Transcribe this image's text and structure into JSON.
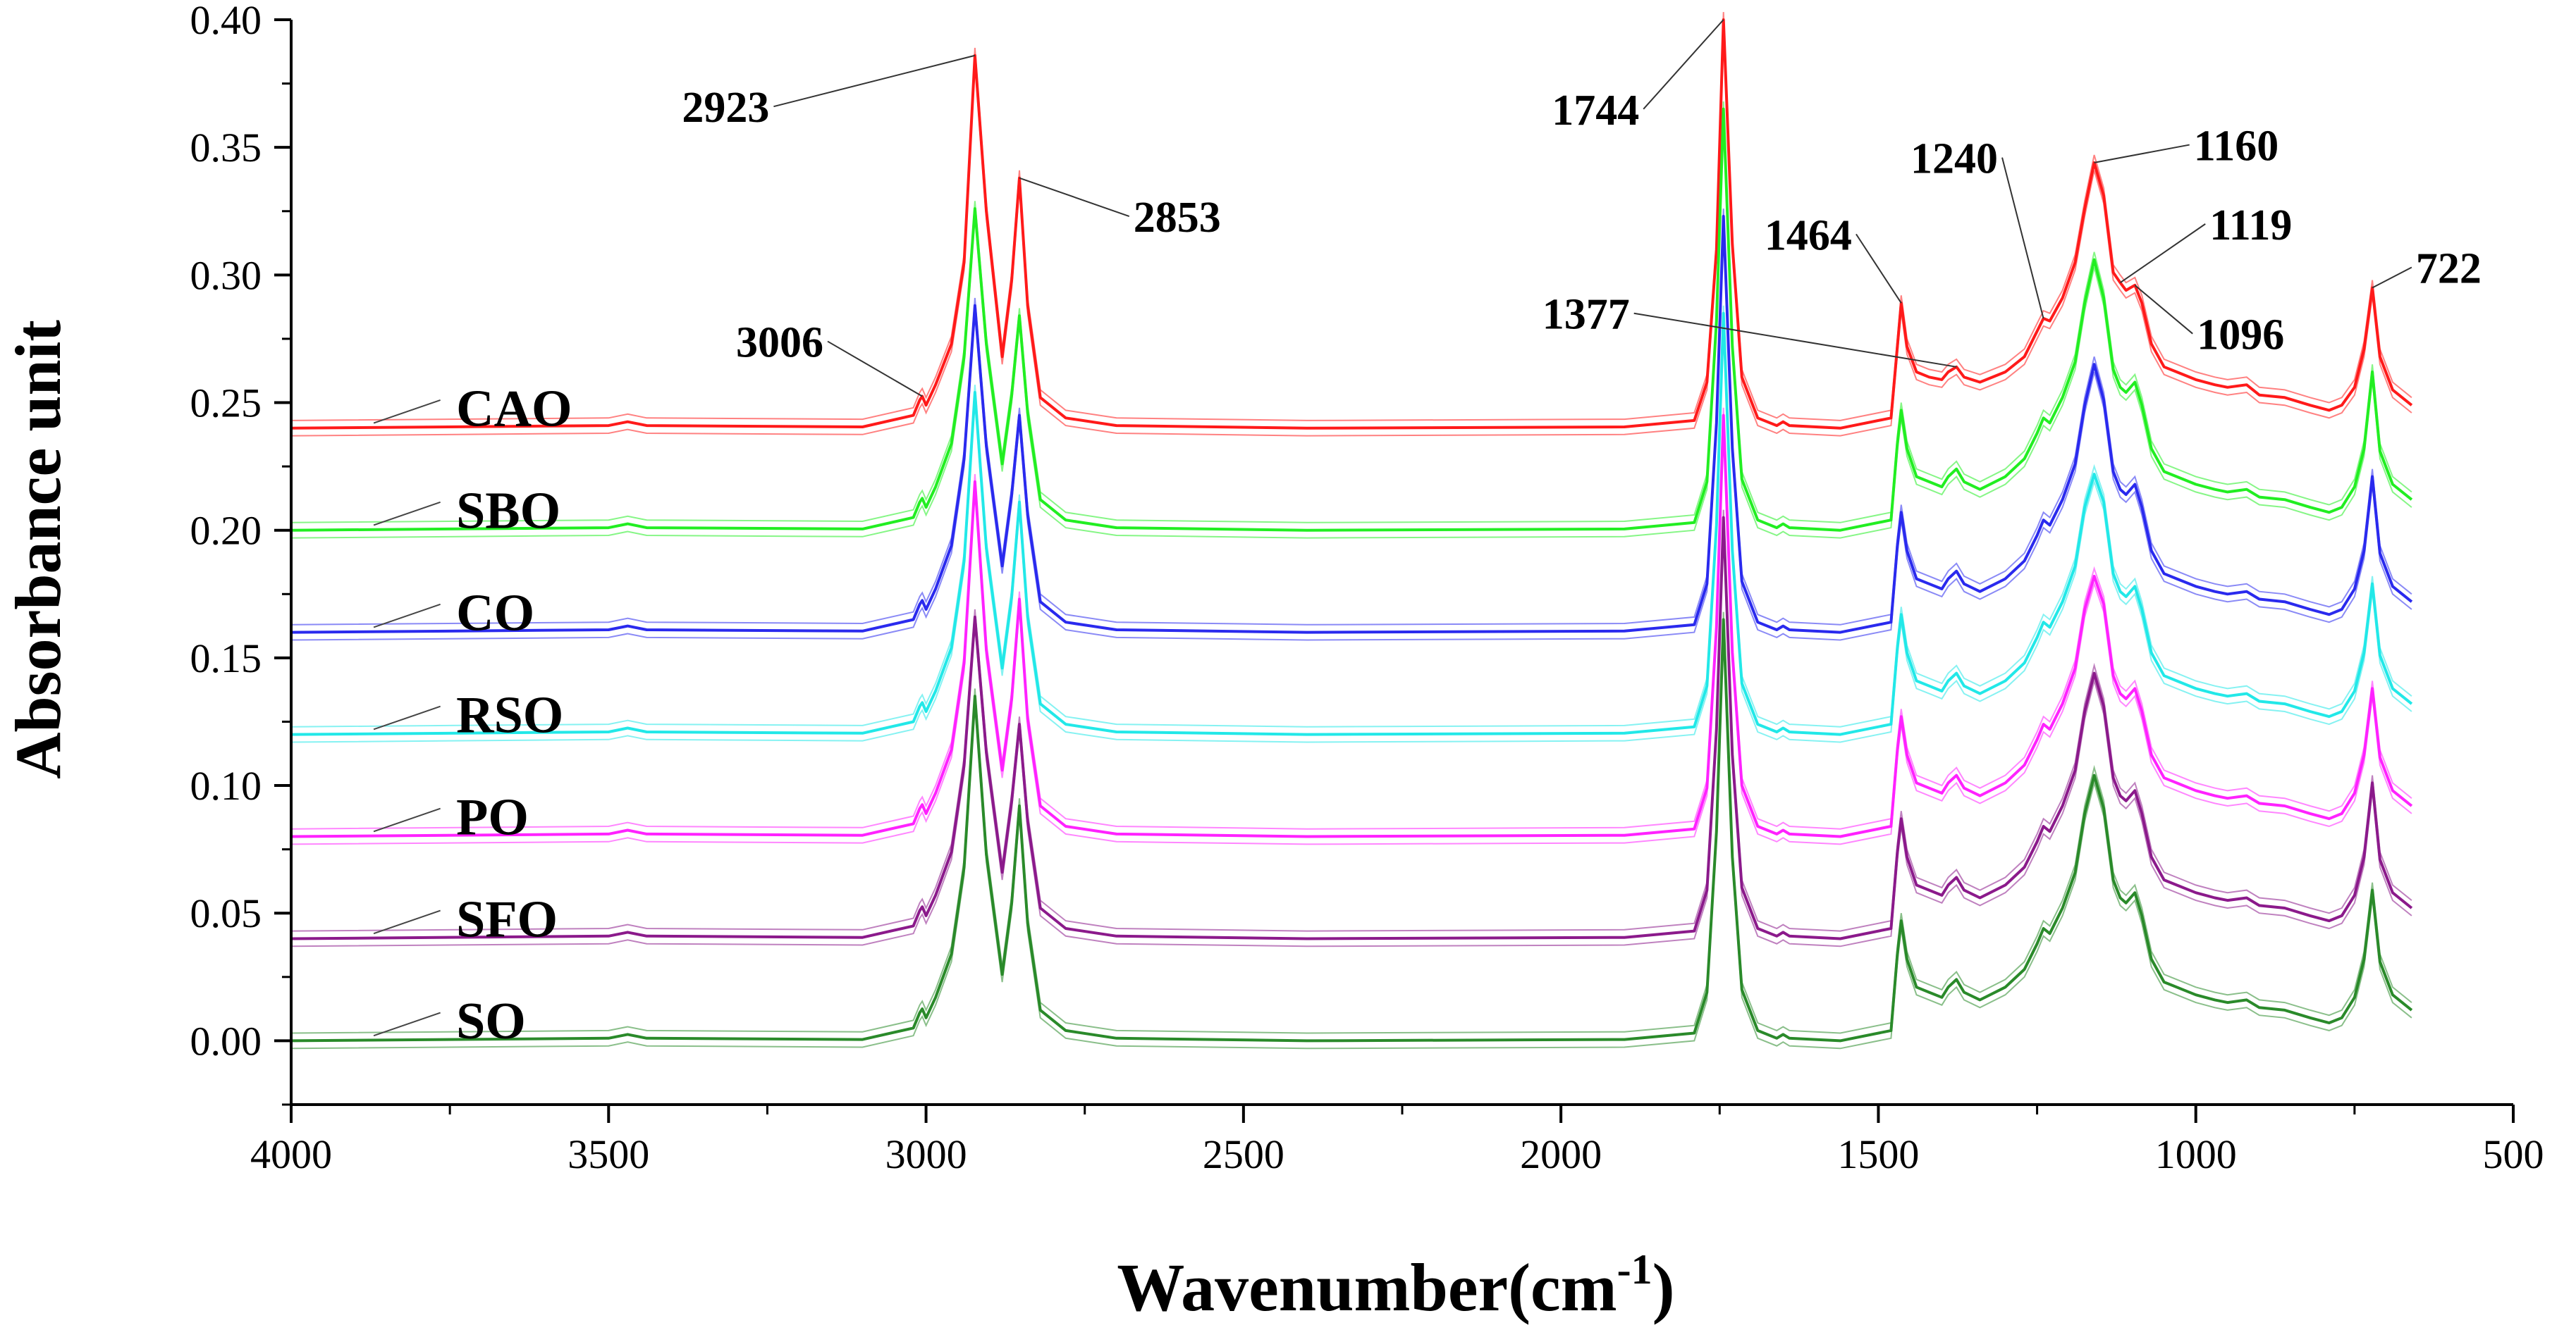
{
  "chart_data": {
    "type": "line",
    "title": "",
    "xlabel": "Wavenumber(cm",
    "xlabel_superscript": "-1",
    "xlabel_close": ")",
    "ylabel": "Absorbance unit",
    "xlim": [
      4000,
      500
    ],
    "ylim": [
      -0.025,
      0.4
    ],
    "xticks": [
      4000,
      3500,
      3000,
      2500,
      2000,
      1500,
      1000,
      500
    ],
    "xtick_labels": [
      "4000",
      "3500",
      "3000",
      "2500",
      "2000",
      "1500",
      "1000",
      "500"
    ],
    "yticks": [
      0.0,
      0.05,
      0.1,
      0.15,
      0.2,
      0.25,
      0.3,
      0.35,
      0.4
    ],
    "ytick_labels": [
      "0.00",
      "0.05",
      "0.10",
      "0.15",
      "0.20",
      "0.25",
      "0.30",
      "0.35",
      "0.40"
    ],
    "grid": false,
    "shape_wavenumbers": [
      4000,
      3500,
      3470,
      3440,
      3100,
      3020,
      3010,
      3006,
      3000,
      2985,
      2960,
      2940,
      2923,
      2905,
      2880,
      2865,
      2853,
      2840,
      2820,
      2780,
      2700,
      2400,
      1900,
      1790,
      1770,
      1755,
      1744,
      1730,
      1715,
      1690,
      1660,
      1650,
      1640,
      1560,
      1480,
      1470,
      1464,
      1455,
      1440,
      1420,
      1400,
      1390,
      1377,
      1365,
      1340,
      1300,
      1270,
      1250,
      1240,
      1230,
      1210,
      1190,
      1175,
      1160,
      1145,
      1130,
      1119,
      1110,
      1096,
      1085,
      1070,
      1050,
      1030,
      1000,
      970,
      950,
      920,
      900,
      860,
      820,
      790,
      770,
      750,
      735,
      722,
      710,
      690,
      660
    ],
    "series": [
      {
        "name": "CAO",
        "color": "#ff1a1a",
        "baseline": 0.24,
        "values": [
          0.24,
          0.241,
          0.2425,
          0.241,
          0.2405,
          0.245,
          0.251,
          0.2525,
          0.249,
          0.257,
          0.273,
          0.305,
          0.386,
          0.325,
          0.268,
          0.298,
          0.338,
          0.288,
          0.252,
          0.244,
          0.241,
          0.24,
          0.2405,
          0.243,
          0.258,
          0.31,
          0.4,
          0.312,
          0.26,
          0.244,
          0.241,
          0.2425,
          0.241,
          0.24,
          0.244,
          0.272,
          0.289,
          0.272,
          0.262,
          0.26,
          0.259,
          0.262,
          0.264,
          0.26,
          0.258,
          0.262,
          0.268,
          0.278,
          0.283,
          0.282,
          0.291,
          0.305,
          0.326,
          0.344,
          0.331,
          0.301,
          0.297,
          0.294,
          0.296,
          0.289,
          0.273,
          0.264,
          0.262,
          0.259,
          0.257,
          0.256,
          0.257,
          0.253,
          0.252,
          0.249,
          0.247,
          0.249,
          0.256,
          0.271,
          0.295,
          0.268,
          0.255,
          0.249
        ]
      },
      {
        "name": "SBO",
        "color": "#22ee22",
        "baseline": 0.2,
        "values": [
          0.2,
          0.201,
          0.2025,
          0.201,
          0.2005,
          0.205,
          0.211,
          0.2125,
          0.209,
          0.217,
          0.234,
          0.268,
          0.326,
          0.273,
          0.226,
          0.253,
          0.284,
          0.246,
          0.212,
          0.204,
          0.201,
          0.2,
          0.2005,
          0.203,
          0.219,
          0.282,
          0.365,
          0.272,
          0.22,
          0.204,
          0.201,
          0.2025,
          0.201,
          0.2,
          0.204,
          0.234,
          0.247,
          0.232,
          0.221,
          0.219,
          0.217,
          0.221,
          0.224,
          0.219,
          0.216,
          0.221,
          0.228,
          0.238,
          0.244,
          0.242,
          0.252,
          0.266,
          0.289,
          0.306,
          0.291,
          0.263,
          0.256,
          0.254,
          0.258,
          0.249,
          0.232,
          0.223,
          0.221,
          0.218,
          0.216,
          0.215,
          0.216,
          0.213,
          0.212,
          0.209,
          0.207,
          0.209,
          0.217,
          0.232,
          0.262,
          0.231,
          0.218,
          0.212
        ]
      },
      {
        "name": "CO",
        "color": "#2a2aee",
        "baseline": 0.16,
        "values": [
          0.16,
          0.161,
          0.1625,
          0.161,
          0.1605,
          0.165,
          0.171,
          0.1725,
          0.169,
          0.177,
          0.194,
          0.228,
          0.288,
          0.233,
          0.186,
          0.214,
          0.245,
          0.206,
          0.172,
          0.164,
          0.161,
          0.16,
          0.1605,
          0.163,
          0.179,
          0.242,
          0.323,
          0.232,
          0.18,
          0.164,
          0.161,
          0.1625,
          0.161,
          0.16,
          0.164,
          0.194,
          0.207,
          0.192,
          0.181,
          0.179,
          0.177,
          0.181,
          0.184,
          0.179,
          0.176,
          0.181,
          0.188,
          0.198,
          0.204,
          0.202,
          0.212,
          0.226,
          0.249,
          0.265,
          0.251,
          0.223,
          0.216,
          0.214,
          0.218,
          0.209,
          0.192,
          0.183,
          0.181,
          0.178,
          0.176,
          0.175,
          0.176,
          0.173,
          0.172,
          0.169,
          0.167,
          0.169,
          0.177,
          0.192,
          0.221,
          0.191,
          0.178,
          0.172
        ]
      },
      {
        "name": "RSO",
        "color": "#22e8e8",
        "baseline": 0.12,
        "values": [
          0.12,
          0.121,
          0.1225,
          0.121,
          0.1205,
          0.125,
          0.131,
          0.1325,
          0.129,
          0.137,
          0.154,
          0.188,
          0.254,
          0.193,
          0.146,
          0.174,
          0.211,
          0.166,
          0.132,
          0.124,
          0.121,
          0.12,
          0.1205,
          0.123,
          0.139,
          0.202,
          0.285,
          0.192,
          0.14,
          0.124,
          0.121,
          0.1225,
          0.121,
          0.12,
          0.124,
          0.154,
          0.167,
          0.152,
          0.141,
          0.139,
          0.137,
          0.141,
          0.144,
          0.139,
          0.136,
          0.141,
          0.148,
          0.158,
          0.164,
          0.162,
          0.172,
          0.186,
          0.209,
          0.222,
          0.211,
          0.183,
          0.176,
          0.174,
          0.178,
          0.169,
          0.152,
          0.143,
          0.141,
          0.138,
          0.136,
          0.135,
          0.136,
          0.133,
          0.132,
          0.129,
          0.127,
          0.129,
          0.137,
          0.152,
          0.179,
          0.151,
          0.138,
          0.132
        ]
      },
      {
        "name": "PO",
        "color": "#ff22ff",
        "baseline": 0.08,
        "values": [
          0.08,
          0.081,
          0.0825,
          0.081,
          0.0805,
          0.085,
          0.091,
          0.0925,
          0.089,
          0.097,
          0.114,
          0.148,
          0.219,
          0.153,
          0.106,
          0.134,
          0.173,
          0.126,
          0.092,
          0.084,
          0.081,
          0.08,
          0.0805,
          0.083,
          0.099,
          0.162,
          0.245,
          0.152,
          0.1,
          0.084,
          0.081,
          0.0825,
          0.081,
          0.08,
          0.084,
          0.114,
          0.127,
          0.112,
          0.101,
          0.099,
          0.097,
          0.101,
          0.104,
          0.099,
          0.096,
          0.101,
          0.108,
          0.118,
          0.124,
          0.122,
          0.132,
          0.146,
          0.169,
          0.182,
          0.171,
          0.143,
          0.136,
          0.134,
          0.138,
          0.129,
          0.112,
          0.103,
          0.101,
          0.098,
          0.096,
          0.095,
          0.096,
          0.093,
          0.092,
          0.089,
          0.087,
          0.089,
          0.097,
          0.112,
          0.138,
          0.111,
          0.098,
          0.092
        ]
      },
      {
        "name": "SFO",
        "color": "#8b1a8b",
        "baseline": 0.04,
        "values": [
          0.04,
          0.041,
          0.0425,
          0.041,
          0.0405,
          0.045,
          0.051,
          0.0525,
          0.049,
          0.057,
          0.074,
          0.108,
          0.166,
          0.113,
          0.066,
          0.094,
          0.124,
          0.086,
          0.052,
          0.044,
          0.041,
          0.04,
          0.0405,
          0.043,
          0.059,
          0.122,
          0.205,
          0.112,
          0.06,
          0.044,
          0.041,
          0.0425,
          0.041,
          0.04,
          0.044,
          0.074,
          0.087,
          0.072,
          0.061,
          0.059,
          0.057,
          0.061,
          0.064,
          0.059,
          0.056,
          0.061,
          0.068,
          0.078,
          0.084,
          0.082,
          0.092,
          0.106,
          0.129,
          0.144,
          0.131,
          0.103,
          0.096,
          0.094,
          0.098,
          0.089,
          0.072,
          0.063,
          0.061,
          0.058,
          0.056,
          0.055,
          0.056,
          0.053,
          0.052,
          0.049,
          0.047,
          0.049,
          0.057,
          0.072,
          0.101,
          0.071,
          0.058,
          0.052
        ]
      },
      {
        "name": "SO",
        "color": "#2a8a2a",
        "baseline": 0.0,
        "values": [
          0.0,
          0.001,
          0.0025,
          0.001,
          0.0005,
          0.005,
          0.011,
          0.0125,
          0.009,
          0.017,
          0.034,
          0.068,
          0.135,
          0.073,
          0.026,
          0.054,
          0.092,
          0.046,
          0.012,
          0.004,
          0.001,
          0.0,
          0.0005,
          0.003,
          0.019,
          0.082,
          0.165,
          0.072,
          0.02,
          0.004,
          0.001,
          0.0025,
          0.001,
          0.0,
          0.004,
          0.034,
          0.047,
          0.032,
          0.021,
          0.019,
          0.017,
          0.021,
          0.024,
          0.019,
          0.016,
          0.021,
          0.028,
          0.038,
          0.044,
          0.042,
          0.052,
          0.066,
          0.089,
          0.104,
          0.091,
          0.063,
          0.056,
          0.054,
          0.058,
          0.049,
          0.032,
          0.023,
          0.021,
          0.018,
          0.016,
          0.015,
          0.016,
          0.013,
          0.012,
          0.009,
          0.007,
          0.009,
          0.017,
          0.032,
          0.059,
          0.031,
          0.018,
          0.012
        ]
      }
    ],
    "peak_annotations": [
      {
        "label": "2923",
        "x": 2923,
        "y": 0.386,
        "text_x": 3240,
        "text_y": 0.366
      },
      {
        "label": "2853",
        "x": 2853,
        "y": 0.338,
        "text_x": 2680,
        "text_y": 0.323
      },
      {
        "label": "3006",
        "x": 3006,
        "y": 0.2525,
        "text_x": 3155,
        "text_y": 0.274
      },
      {
        "label": "1744",
        "x": 1744,
        "y": 0.4,
        "text_x": 1870,
        "text_y": 0.365
      },
      {
        "label": "1464",
        "x": 1464,
        "y": 0.289,
        "text_x": 1535,
        "text_y": 0.316
      },
      {
        "label": "1377",
        "x": 1377,
        "y": 0.264,
        "text_x": 1885,
        "text_y": 0.285
      },
      {
        "label": "1240",
        "x": 1240,
        "y": 0.283,
        "text_x": 1305,
        "text_y": 0.346
      },
      {
        "label": "1160",
        "x": 1160,
        "y": 0.344,
        "text_x": 1010,
        "text_y": 0.351
      },
      {
        "label": "1119",
        "x": 1119,
        "y": 0.297,
        "text_x": 985,
        "text_y": 0.32
      },
      {
        "label": "1096",
        "x": 1096,
        "y": 0.296,
        "text_x": 1005,
        "text_y": 0.277
      },
      {
        "label": "722",
        "x": 722,
        "y": 0.295,
        "text_x": 660,
        "text_y": 0.303
      }
    ],
    "series_label_positions": [
      {
        "name": "CAO",
        "x": 3740,
        "y": 0.2475,
        "leader_from_x": 3870,
        "leader_from_y": 0.242,
        "leader_to_x": 3765,
        "leader_to_y": 0.251
      },
      {
        "name": "SBO",
        "x": 3740,
        "y": 0.2075,
        "leader_from_x": 3870,
        "leader_from_y": 0.202,
        "leader_to_x": 3765,
        "leader_to_y": 0.211
      },
      {
        "name": "CO",
        "x": 3740,
        "y": 0.1675,
        "leader_from_x": 3870,
        "leader_from_y": 0.162,
        "leader_to_x": 3765,
        "leader_to_y": 0.171
      },
      {
        "name": "RSO",
        "x": 3740,
        "y": 0.1275,
        "leader_from_x": 3870,
        "leader_from_y": 0.122,
        "leader_to_x": 3765,
        "leader_to_y": 0.131
      },
      {
        "name": "PO",
        "x": 3740,
        "y": 0.0875,
        "leader_from_x": 3870,
        "leader_from_y": 0.082,
        "leader_to_x": 3765,
        "leader_to_y": 0.091
      },
      {
        "name": "SFO",
        "x": 3740,
        "y": 0.0475,
        "leader_from_x": 3870,
        "leader_from_y": 0.042,
        "leader_to_x": 3765,
        "leader_to_y": 0.051
      },
      {
        "name": "SO",
        "x": 3740,
        "y": 0.0075,
        "leader_from_x": 3870,
        "leader_from_y": 0.002,
        "leader_to_x": 3765,
        "leader_to_y": 0.011
      }
    ]
  }
}
